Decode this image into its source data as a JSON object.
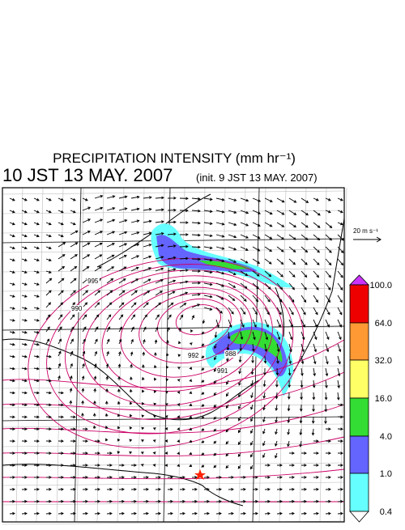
{
  "header": {
    "title": "PRECIPITATION INTENSITY (mm hr⁻¹)",
    "valid_time": "10 JST 13 MAY. 2007",
    "init_time": "(init. 9 JST 13 MAY. 2007)"
  },
  "wind_scale": {
    "label": "20 m s⁻¹"
  },
  "colorbar": {
    "labels": [
      "100.0",
      "64.0",
      "32.0",
      "16.0",
      "4.0",
      "1.0",
      "0.4"
    ]
  },
  "contour_labels": [
    "995",
    "990",
    "992",
    "988",
    "991"
  ]
}
